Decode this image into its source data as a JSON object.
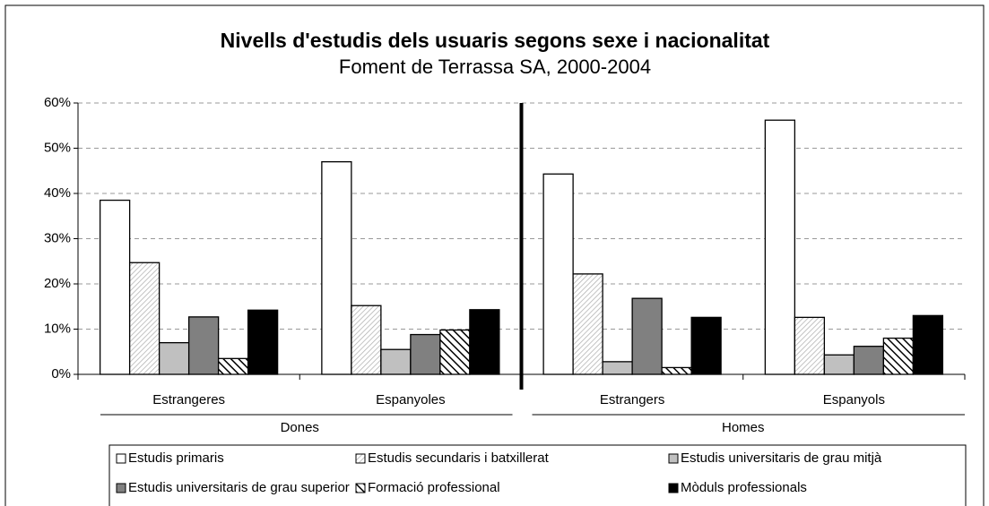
{
  "chart_data": {
    "type": "bar",
    "title": "Nivells d'estudis dels usuaris segons sexe i nacionalitat",
    "subtitle": "Foment de Terrassa SA, 2000-2004",
    "categories": [
      "Estrangeres",
      "Espanyoles",
      "Estrangers",
      "Espanyols"
    ],
    "group_labels": [
      "Dones",
      "Homes"
    ],
    "series": [
      {
        "name": "Estudis primaris",
        "color": "#ffffff",
        "values": [
          38.5,
          47,
          44.3,
          56.2
        ]
      },
      {
        "name": "Estudis secundaris i batxillerat",
        "color": "#e0e0e0",
        "pattern": "fine-hatch",
        "values": [
          24.7,
          15.2,
          22.2,
          12.6
        ]
      },
      {
        "name": "Estudis universitaris de grau mitjà",
        "color": "#c0c0c0",
        "values": [
          7,
          5.5,
          2.8,
          4.3
        ]
      },
      {
        "name": "Estudis universitaris de grau superior",
        "color": "#808080",
        "values": [
          12.7,
          8.8,
          16.8,
          6.2
        ]
      },
      {
        "name": "Formació professional",
        "color": "#000000",
        "pattern": "bold-hatch",
        "values": [
          3.5,
          9.8,
          1.5,
          8
        ]
      },
      {
        "name": "Mòduls professionals",
        "color": "#000000",
        "values": [
          14.2,
          14.3,
          12.6,
          13
        ]
      }
    ],
    "ylim": [
      0,
      60
    ],
    "yticks": [
      {
        "value": 0,
        "label": "0%"
      },
      {
        "value": 10,
        "label": "10%"
      },
      {
        "value": 20,
        "label": "20%"
      },
      {
        "value": 30,
        "label": "30%"
      },
      {
        "value": 40,
        "label": "40%"
      },
      {
        "value": 50,
        "label": "50%"
      },
      {
        "value": 60,
        "label": "60%"
      }
    ],
    "grid": true
  }
}
